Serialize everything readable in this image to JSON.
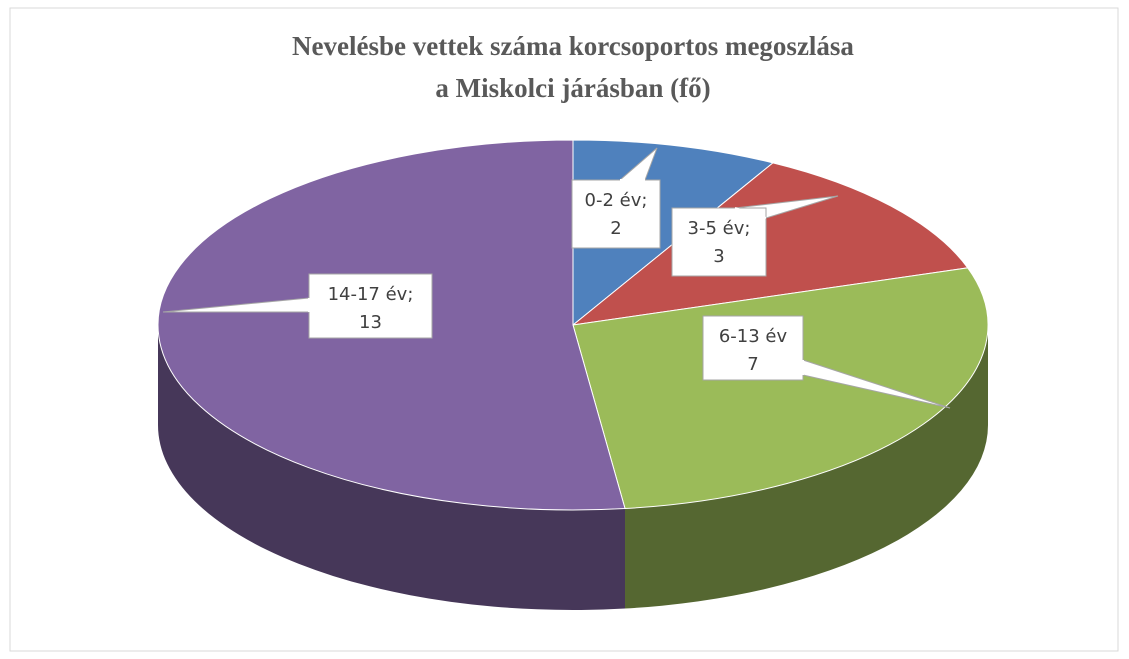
{
  "chart_data": {
    "type": "pie",
    "title": [
      "Nevelésbe vettek száma korcsoportos megoszlása",
      "a Miskolci járásban (fő)"
    ],
    "categories": [
      "0-2 év;",
      "3-5 év;",
      "6-13 év",
      "14-17 év;"
    ],
    "values": [
      2,
      3,
      7,
      13
    ],
    "colors": [
      "#4f81bd",
      "#c0504d",
      "#9bbb59",
      "#8064a2"
    ],
    "three_d": true
  }
}
